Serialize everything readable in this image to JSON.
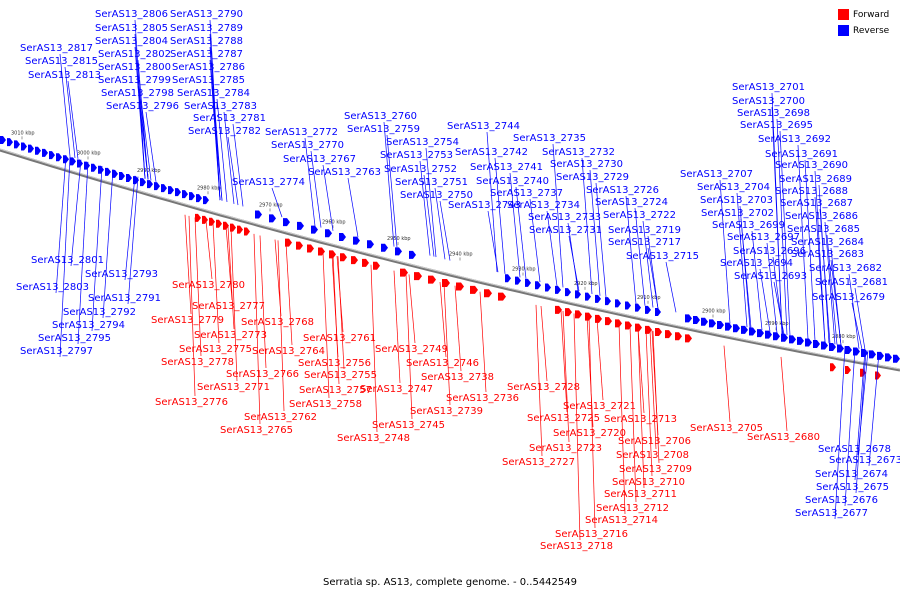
{
  "caption": "Serratia sp. AS13, complete genome. - 0..5442549",
  "legend": [
    {
      "label": "Forward",
      "color": "#ff0000"
    },
    {
      "label": "Reverse",
      "color": "#0000ff"
    }
  ],
  "colors": {
    "forward": "#ff0000",
    "reverse": "#0000ff",
    "backbone": "#888888"
  },
  "ticks": [
    "3010 kbp",
    "3000 kbp",
    "2990 kbp",
    "2980 kbp",
    "2970 kbp",
    "2960 kbp",
    "2950 kbp",
    "2940 kbp",
    "2930 kbp",
    "2920 kbp",
    "2910 kbp",
    "2900 kbp",
    "2890 kbp",
    "2880 kbp"
  ],
  "reverse_genes": [
    "SerAS13_2806",
    "SerAS13_2805",
    "SerAS13_2804",
    "SerAS13_2802",
    "SerAS13_2800",
    "SerAS13_2799",
    "SerAS13_2798",
    "SerAS13_2796",
    "SerAS13_2790",
    "SerAS13_2789",
    "SerAS13_2788",
    "SerAS13_2787",
    "SerAS13_2786",
    "SerAS13_2785",
    "SerAS13_2784",
    "SerAS13_2783",
    "SerAS13_2781",
    "SerAS13_2782",
    "SerAS13_2817",
    "SerAS13_2815",
    "SerAS13_2813",
    "SerAS13_2772",
    "SerAS13_2770",
    "SerAS13_2767",
    "SerAS13_2763",
    "SerAS13_2774",
    "SerAS13_2760",
    "SerAS13_2759",
    "SerAS13_2754",
    "SerAS13_2753",
    "SerAS13_2752",
    "SerAS13_2751",
    "SerAS13_2750",
    "SerAS13_2744",
    "SerAS13_2742",
    "SerAS13_2741",
    "SerAS13_2740",
    "SerAS13_2737",
    "SerAS13_2743",
    "SerAS13_2735",
    "SerAS13_2732",
    "SerAS13_2730",
    "SerAS13_2729",
    "SerAS13_2726",
    "SerAS13_2734",
    "SerAS13_2724",
    "SerAS13_2733",
    "SerAS13_2722",
    "SerAS13_2731",
    "SerAS13_2719",
    "SerAS13_2717",
    "SerAS13_2715",
    "SerAS13_2701",
    "SerAS13_2700",
    "SerAS13_2698",
    "SerAS13_2695",
    "SerAS13_2692",
    "SerAS13_2691",
    "SerAS13_2690",
    "SerAS13_2707",
    "SerAS13_2689",
    "SerAS13_2704",
    "SerAS13_2688",
    "SerAS13_2703",
    "SerAS13_2687",
    "SerAS13_2702",
    "SerAS13_2686",
    "SerAS13_2699",
    "SerAS13_2685",
    "SerAS13_2697",
    "SerAS13_2684",
    "SerAS13_2696",
    "SerAS13_2683",
    "SerAS13_2694",
    "SerAS13_2682",
    "SerAS13_2693",
    "SerAS13_2681",
    "SerAS13_2679",
    "SerAS13_2801",
    "SerAS13_2793",
    "SerAS13_2803",
    "SerAS13_2791",
    "SerAS13_2792",
    "SerAS13_2794",
    "SerAS13_2795",
    "SerAS13_2797",
    "SerAS13_2678",
    "SerAS13_2673",
    "SerAS13_2674",
    "SerAS13_2675",
    "SerAS13_2676",
    "SerAS13_2677"
  ],
  "forward_genes": [
    "SerAS13_2780",
    "SerAS13_2777",
    "SerAS13_2779",
    "SerAS13_2773",
    "SerAS13_2775",
    "SerAS13_2778",
    "SerAS13_2768",
    "SerAS13_2761",
    "SerAS13_2764",
    "SerAS13_2766",
    "SerAS13_2771",
    "SerAS13_2776",
    "SerAS13_2756",
    "SerAS13_2755",
    "SerAS13_2757",
    "SerAS13_2758",
    "SerAS13_2762",
    "SerAS13_2765",
    "SerAS13_2749",
    "SerAS13_2746",
    "SerAS13_2747",
    "SerAS13_2745",
    "SerAS13_2748",
    "SerAS13_2738",
    "SerAS13_2736",
    "SerAS13_2739",
    "SerAS13_2728",
    "SerAS13_2721",
    "SerAS13_2725",
    "SerAS13_2720",
    "SerAS13_2723",
    "SerAS13_2727",
    "SerAS13_2713",
    "SerAS13_2706",
    "SerAS13_2708",
    "SerAS13_2709",
    "SerAS13_2710",
    "SerAS13_2711",
    "SerAS13_2712",
    "SerAS13_2714",
    "SerAS13_2716",
    "SerAS13_2718",
    "SerAS13_2705",
    "SerAS13_2680"
  ]
}
